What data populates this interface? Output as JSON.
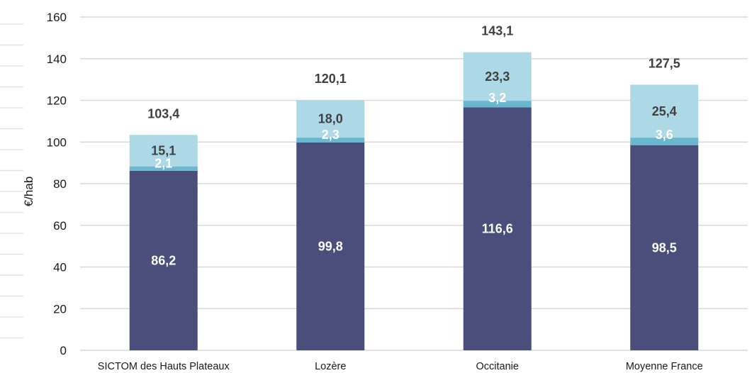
{
  "chart_data": {
    "type": "bar",
    "stacked": true,
    "ylabel": "€/hab",
    "ylim": [
      0,
      160
    ],
    "yticks": [
      0,
      20,
      40,
      60,
      80,
      100,
      120,
      140,
      160
    ],
    "grid": true,
    "categories": [
      "SICTOM des Hauts Plateaux",
      "Lozère",
      "Occitanie",
      "Moyenne France"
    ],
    "series": [
      {
        "values": [
          86.2,
          99.8,
          116.6,
          98.5
        ],
        "labels": [
          "86,2",
          "99,8",
          "116,6",
          "98,5"
        ],
        "color": "#4a4e7a",
        "label_color": "#ffffff"
      },
      {
        "values": [
          2.1,
          2.3,
          3.2,
          3.6
        ],
        "labels": [
          "2,1",
          "2,3",
          "3,2",
          "3,6"
        ],
        "color": "#6bb7cf",
        "label_color": "#ffffff"
      },
      {
        "values": [
          15.1,
          18.0,
          23.3,
          25.4
        ],
        "labels": [
          "15,1",
          "18,0",
          "23,3",
          "25,4"
        ],
        "color": "#add8e6",
        "label_color": "#404040"
      }
    ],
    "totals": [
      103.4,
      120.1,
      143.1,
      127.5
    ],
    "total_labels": [
      "103,4",
      "120,1",
      "143,1",
      "127,5"
    ]
  }
}
